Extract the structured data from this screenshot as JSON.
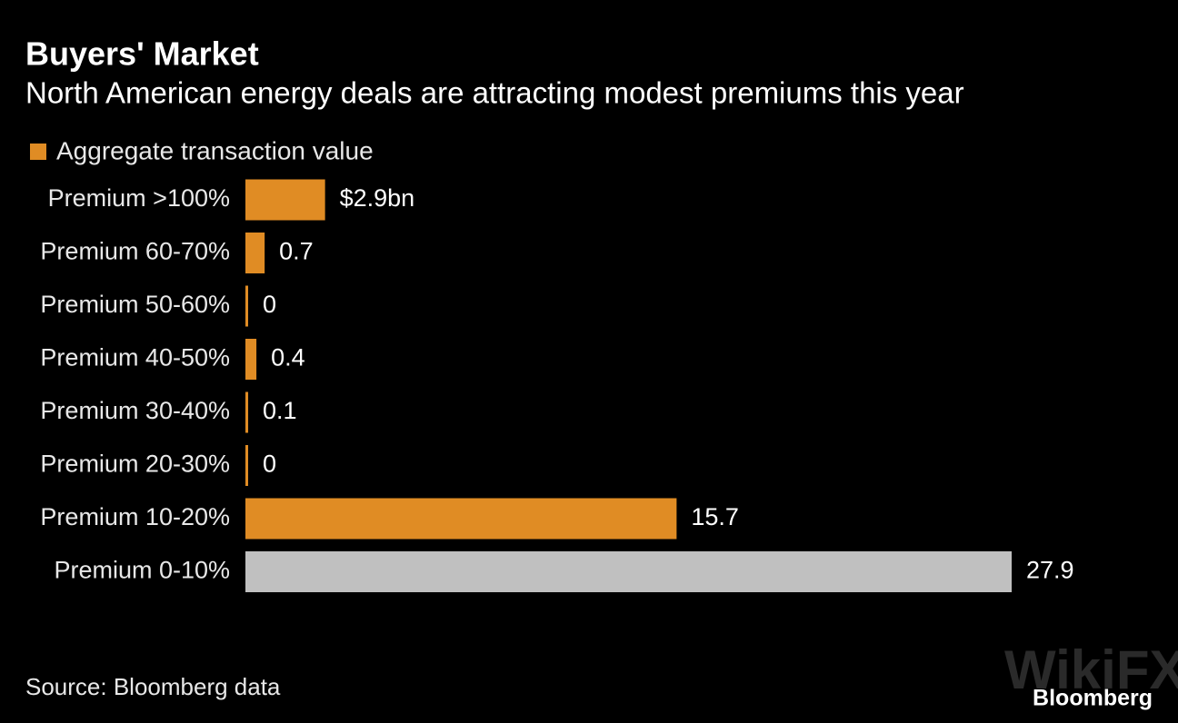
{
  "chart_data": {
    "type": "hbar",
    "title": "Buyers' Market",
    "subtitle": "North American energy deals are attracting modest premiums this year",
    "legend": [
      {
        "name": "Aggregate transaction value",
        "color": "#e08c24"
      }
    ],
    "categories": [
      "Premium >100%",
      "Premium 60-70%",
      "Premium 50-60%",
      "Premium 40-50%",
      "Premium 30-40%",
      "Premium 20-30%",
      "Premium 10-20%",
      "Premium 0-10%"
    ],
    "values": [
      2.9,
      0.7,
      0,
      0.4,
      0.1,
      0,
      15.7,
      27.9
    ],
    "value_labels": [
      "$2.9bn",
      "0.7",
      "0",
      "0.4",
      "0.1",
      "0",
      "15.7",
      "27.9"
    ],
    "colors": [
      "#e08c24",
      "#e08c24",
      "#e08c24",
      "#e08c24",
      "#e08c24",
      "#e08c24",
      "#e08c24",
      "#c0c0c0"
    ],
    "source": "Source: Bloomberg data",
    "brand": "Bloomberg",
    "watermark": "WikiFX"
  }
}
